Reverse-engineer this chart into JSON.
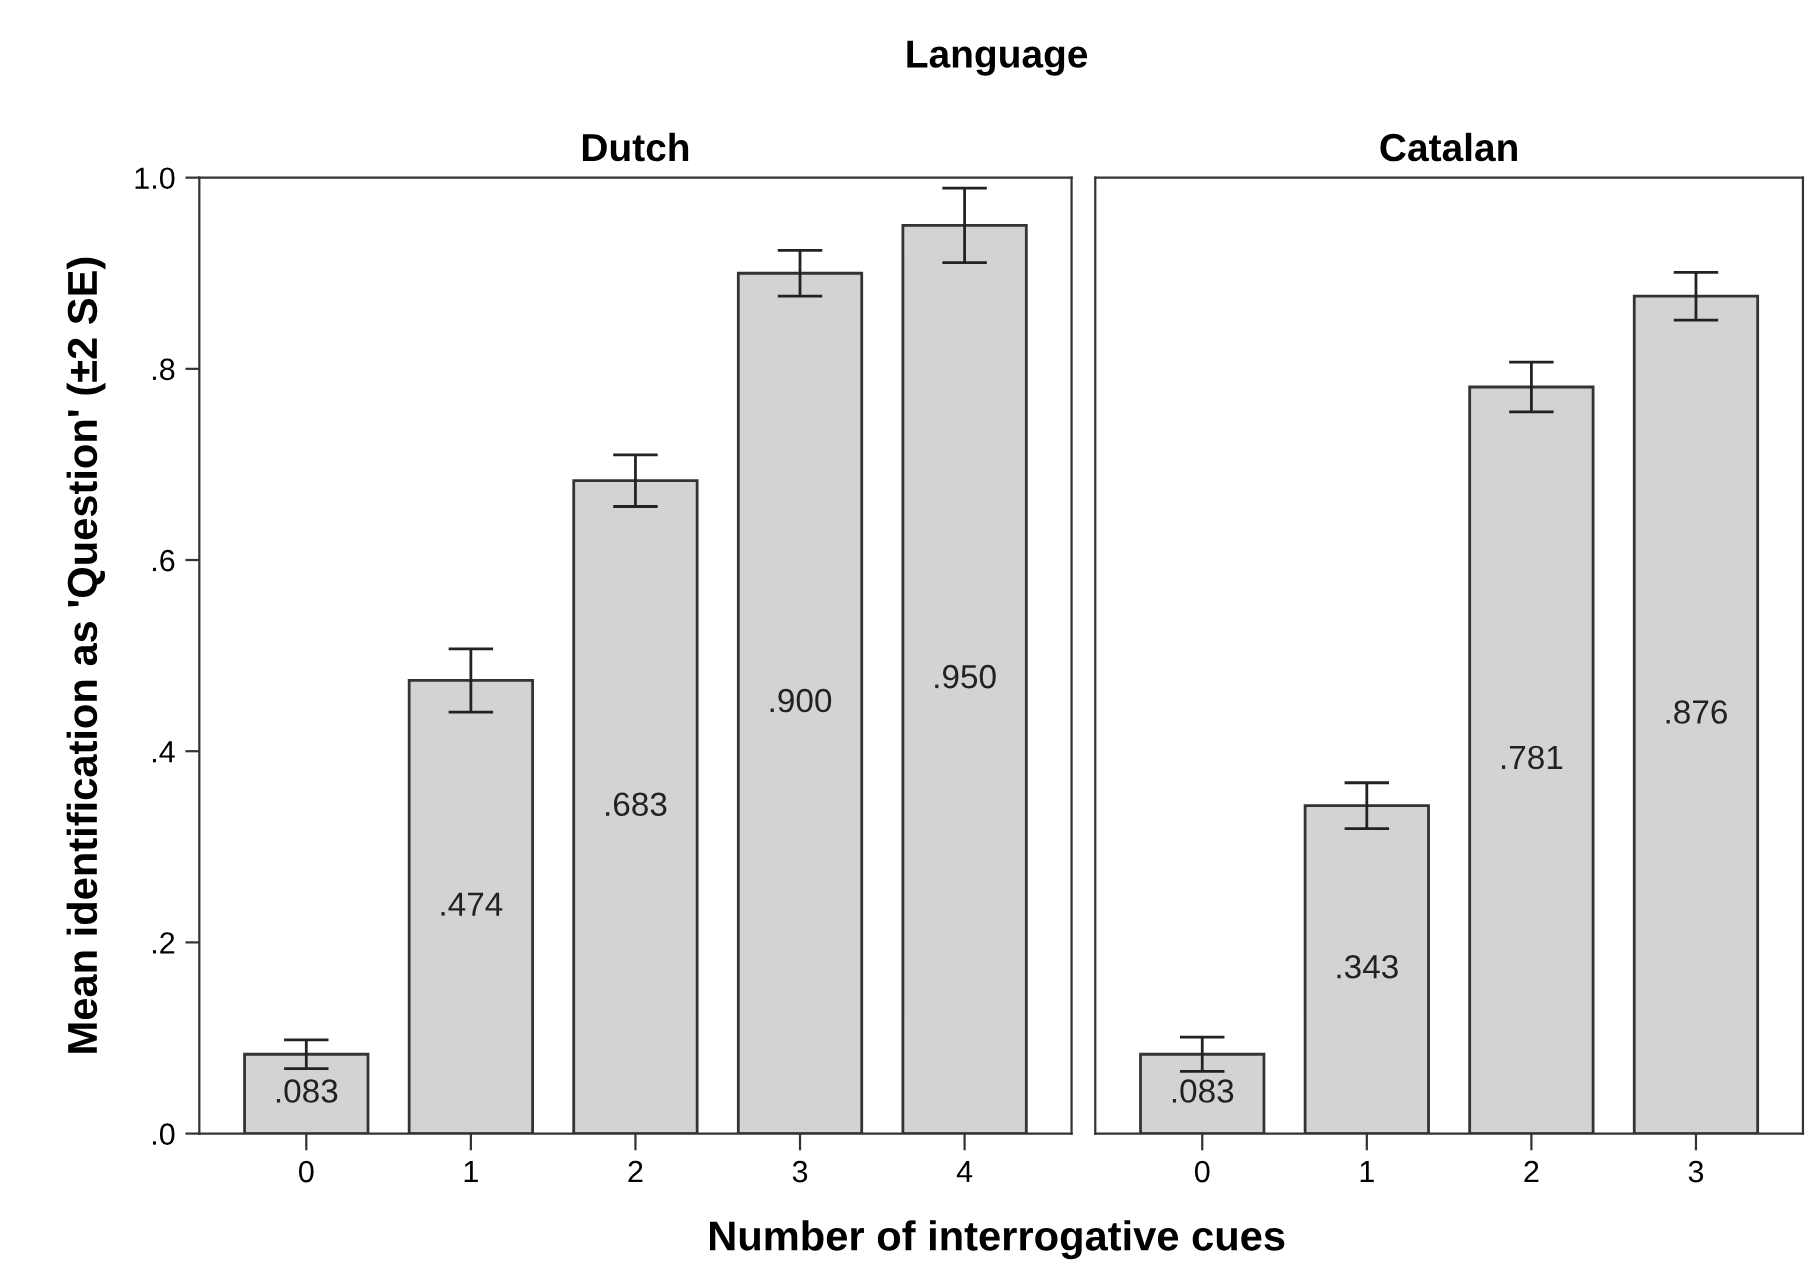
{
  "chart_data": [
    {
      "type": "bar",
      "title": "Dutch",
      "ylabel": "Mean identification as 'Question' (±2 SE)",
      "xlabel": "Number of interrogative cues",
      "annotations": [
        "Language"
      ],
      "categories": [
        "0",
        "1",
        "2",
        "3",
        "4"
      ],
      "values": [
        0.083,
        0.474,
        0.683,
        0.9,
        0.95
      ],
      "errors": [
        0.015,
        0.033,
        0.027,
        0.024,
        0.039
      ],
      "value_labels": [
        ".083",
        ".474",
        ".683",
        ".900",
        ".950"
      ],
      "color": "#d3d3d3",
      "ylim": [
        0,
        1
      ],
      "yticks": [
        {
          "value": 0,
          "label": ".0"
        },
        {
          "value": 0.2,
          "label": ".2"
        },
        {
          "value": 0.4,
          "label": ".4"
        },
        {
          "value": 0.6,
          "label": ".6"
        },
        {
          "value": 0.8,
          "label": ".8"
        },
        {
          "value": 1,
          "label": "1.0"
        }
      ],
      "grid": false
    },
    {
      "type": "bar",
      "title": "Catalan",
      "categories": [
        "0",
        "1",
        "2",
        "3"
      ],
      "values": [
        0.083,
        0.343,
        0.781,
        0.876
      ],
      "errors": [
        0.018,
        0.024,
        0.026,
        0.025
      ],
      "value_labels": [
        ".083",
        ".343",
        ".781",
        ".876"
      ],
      "color": "#d3d3d3",
      "ylim": [
        0,
        1
      ],
      "tick_labels": "x",
      "grid": false
    }
  ]
}
